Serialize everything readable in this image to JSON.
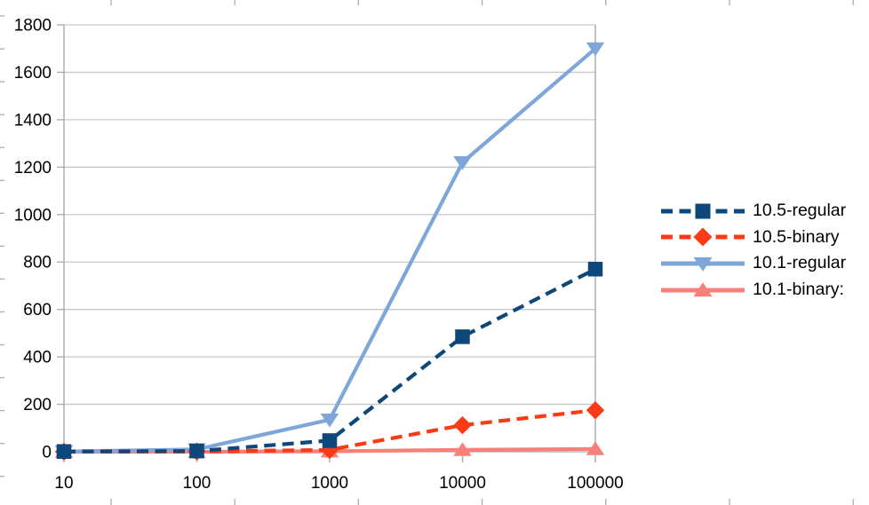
{
  "chart_data": {
    "type": "line",
    "title": "",
    "xlabel": "",
    "ylabel": "",
    "x_scale": "log",
    "x": [
      10,
      100,
      1000,
      10000,
      100000
    ],
    "x_tick_labels": [
      "10",
      "100",
      "1000",
      "10000",
      "100000"
    ],
    "y_tick_labels": [
      "0",
      "200",
      "400",
      "600",
      "800",
      "1000",
      "1200",
      "1400",
      "1600",
      "1800"
    ],
    "ylim": [
      0,
      1800
    ],
    "y_tick_step": 200,
    "grid": "horizontal-only",
    "legend_position": "right-middle",
    "series": [
      {
        "name": "10.5-regular",
        "color": "#0E477A",
        "line_style": "dashed",
        "marker": "square",
        "values": [
          1,
          3,
          47,
          485,
          770
        ]
      },
      {
        "name": "10.5-binary",
        "color": "#FB3A16",
        "line_style": "dashed",
        "marker": "diamond",
        "values": [
          0,
          1,
          8,
          112,
          175
        ]
      },
      {
        "name": "10.1-regular",
        "color": "#7EA6D8",
        "line_style": "solid",
        "marker": "triangle-down",
        "values": [
          1,
          10,
          135,
          1220,
          1700
        ]
      },
      {
        "name": "10.1-binary:",
        "color": "#F9807A",
        "line_style": "solid",
        "marker": "triangle-up",
        "values": [
          0,
          0,
          2,
          8,
          12
        ]
      }
    ]
  },
  "colors": {
    "background": "#ffffff",
    "gridline": "#c9c9c9",
    "axis_line": "#a9a9a9",
    "sheet_edge_tick": "#b0b0b0",
    "text": "#000000"
  }
}
